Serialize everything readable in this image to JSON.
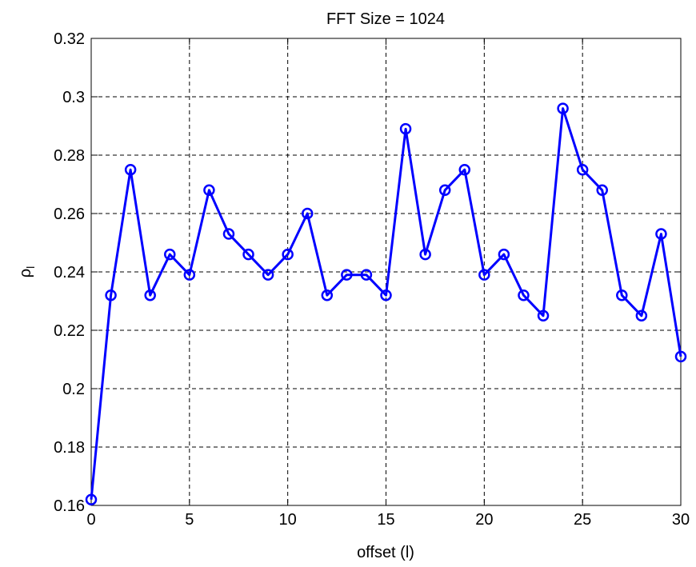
{
  "chart_data": {
    "type": "line",
    "title": "FFT Size = 1024",
    "xlabel": "offset (l)",
    "ylabel": {
      "base": "ρ",
      "subscript": "l"
    },
    "xlim": [
      0,
      30
    ],
    "ylim": [
      0.16,
      0.32
    ],
    "xticks": [
      0,
      5,
      10,
      15,
      20,
      25,
      30
    ],
    "xtick_labels": [
      "0",
      "5",
      "10",
      "15",
      "20",
      "25",
      "30"
    ],
    "yticks": [
      0.16,
      0.18,
      0.2,
      0.22,
      0.24,
      0.26,
      0.28,
      0.3,
      0.32
    ],
    "ytick_labels": [
      "0.16",
      "0.18",
      "0.2",
      "0.22",
      "0.24",
      "0.26",
      "0.28",
      "0.3",
      "0.32"
    ],
    "grid": true,
    "grid_style": "dashed",
    "line_color": "#0000ff",
    "marker": "circle",
    "series": [
      {
        "x": [
          0,
          1,
          2,
          3,
          4,
          5,
          6,
          7,
          8,
          9,
          10,
          11,
          12,
          13,
          14,
          15,
          16,
          17,
          18,
          19,
          20,
          21,
          22,
          23,
          24,
          25,
          26,
          27,
          28,
          29,
          30
        ],
        "values": [
          0.162,
          0.232,
          0.275,
          0.232,
          0.246,
          0.239,
          0.268,
          0.253,
          0.246,
          0.239,
          0.246,
          0.26,
          0.232,
          0.239,
          0.239,
          0.232,
          0.289,
          0.246,
          0.268,
          0.275,
          0.239,
          0.246,
          0.232,
          0.225,
          0.296,
          0.275,
          0.268,
          0.232,
          0.225,
          0.253,
          0.211
        ]
      }
    ]
  }
}
